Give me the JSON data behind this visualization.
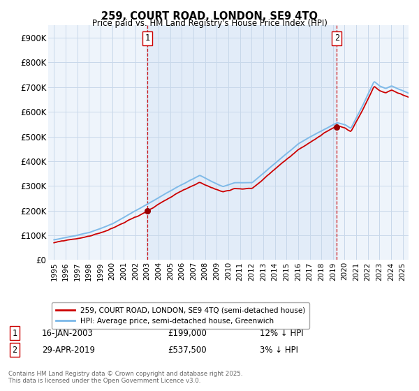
{
  "title": "259, COURT ROAD, LONDON, SE9 4TQ",
  "subtitle": "Price paid vs. HM Land Registry's House Price Index (HPI)",
  "legend_line1": "259, COURT ROAD, LONDON, SE9 4TQ (semi-detached house)",
  "legend_line2": "HPI: Average price, semi-detached house, Greenwich",
  "footnote": "Contains HM Land Registry data © Crown copyright and database right 2025.\nThis data is licensed under the Open Government Licence v3.0.",
  "sale1_label": "1",
  "sale1_date": "16-JAN-2003",
  "sale1_price": "£199,000",
  "sale1_hpi": "12% ↓ HPI",
  "sale2_label": "2",
  "sale2_date": "29-APR-2019",
  "sale2_price": "£537,500",
  "sale2_hpi": "3% ↓ HPI",
  "sale1_x": 2003.04,
  "sale1_y": 199000,
  "sale2_x": 2019.33,
  "sale2_y": 537500,
  "hpi_color": "#7ab8e8",
  "price_color": "#cc0000",
  "vline_color": "#cc0000",
  "background_color": "#ffffff",
  "plot_bg_color": "#eef4fb",
  "grid_color": "#c8d8ea",
  "shade_color": "#ddeaf8",
  "ylim": [
    0,
    950000
  ],
  "xlim_start": 1994.5,
  "xlim_end": 2025.5,
  "yticks": [
    0,
    100000,
    200000,
    300000,
    400000,
    500000,
    600000,
    700000,
    800000,
    900000
  ],
  "ytick_labels": [
    "£0",
    "£100K",
    "£200K",
    "£300K",
    "£400K",
    "£500K",
    "£600K",
    "£700K",
    "£800K",
    "£900K"
  ]
}
